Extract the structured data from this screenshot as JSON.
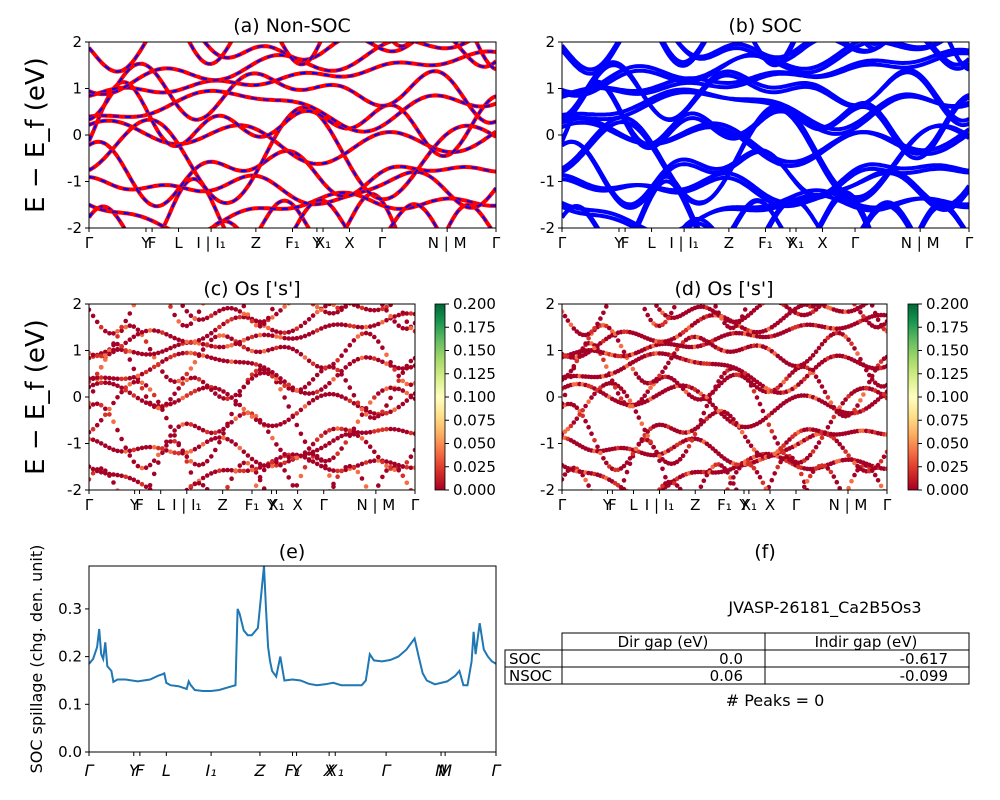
{
  "figure": {
    "ylabel_main": "E − E_f (eV)",
    "kpath_labels": [
      "Γ",
      "Y",
      "F",
      "L",
      "I | I₁",
      "Z",
      "F₁",
      "Y",
      "X₁",
      "X",
      "Γ",
      "N | M",
      "Γ"
    ]
  },
  "chart_data": [
    {
      "id": "a",
      "type": "line",
      "title": "(a) Non-SOC",
      "ylabel": "E − E_f (eV)",
      "ylim": [
        -2,
        2
      ],
      "yticks": [
        -2,
        -1,
        0,
        1,
        2
      ],
      "xticks": [
        "Γ",
        "Y",
        "F",
        "L",
        "I | I₁",
        "Z",
        "F₁",
        "Y",
        "X₁",
        "X",
        "Γ",
        "N | M",
        "Γ"
      ],
      "series": [
        {
          "color": "#ff0000"
        },
        {
          "color": "#0000ff"
        }
      ]
    },
    {
      "id": "b",
      "type": "line",
      "title": "(b) SOC",
      "ylim": [
        -2,
        2
      ],
      "yticks": [
        -2,
        -1,
        0,
        1,
        2
      ],
      "xticks": [
        "Γ",
        "Y",
        "F",
        "L",
        "I | I₁",
        "Z",
        "F₁",
        "Y",
        "X₁",
        "X",
        "Γ",
        "N | M",
        "Γ"
      ],
      "series": [
        {
          "color": "#0000ff"
        }
      ]
    },
    {
      "id": "c",
      "type": "scatter",
      "title": "(c)  Os ['s']",
      "ylabel": "E − E_f (eV)",
      "ylim": [
        -2,
        2
      ],
      "yticks": [
        -2,
        -1,
        0,
        1,
        2
      ],
      "xticks": [
        "Γ",
        "Y",
        "F",
        "L",
        "I | I₁",
        "Z",
        "F₁",
        "Y",
        "X₁",
        "X",
        "Γ",
        "N | M",
        "Γ"
      ],
      "colorbar": {
        "colormap": "RdYlGn",
        "range": [
          0.0,
          0.2
        ],
        "ticks": [
          "0.000",
          "0.025",
          "0.050",
          "0.075",
          "0.100",
          "0.125",
          "0.150",
          "0.175",
          "0.200"
        ]
      }
    },
    {
      "id": "d",
      "type": "scatter",
      "title": "(d) Os ['s']",
      "ylim": [
        -2,
        2
      ],
      "yticks": [
        -2,
        -1,
        0,
        1,
        2
      ],
      "xticks": [
        "Γ",
        "Y",
        "F",
        "L",
        "I | I₁",
        "Z",
        "F₁",
        "Y",
        "X₁",
        "X",
        "Γ",
        "N | M",
        "Γ"
      ],
      "colorbar": {
        "colormap": "RdYlGn",
        "range": [
          0.0,
          0.2
        ],
        "ticks": [
          "0.000",
          "0.025",
          "0.050",
          "0.075",
          "0.100",
          "0.125",
          "0.150",
          "0.175",
          "0.200"
        ]
      }
    },
    {
      "id": "e",
      "type": "line",
      "title": "(e)",
      "ylabel": "SOC spillage (chg. den. unit)",
      "ylim": [
        0.0,
        0.39
      ],
      "yticks": [
        "0.0",
        "0.1",
        "0.2",
        "0.3"
      ],
      "xticks": [
        "Γ",
        "Y",
        "F",
        "L",
        "I₁",
        "Z",
        "F₁",
        "Y",
        "X",
        "X₁",
        "Γ",
        "N",
        "M",
        "Γ"
      ],
      "series": [
        {
          "color": "#1f77b4",
          "x": [
            0,
            0.01,
            0.02,
            0.025,
            0.03,
            0.035,
            0.04,
            0.045,
            0.05,
            0.055,
            0.06,
            0.07,
            0.09,
            0.12,
            0.15,
            0.17,
            0.18,
            0.185,
            0.19,
            0.2,
            0.22,
            0.24,
            0.245,
            0.25,
            0.26,
            0.28,
            0.3,
            0.32,
            0.34,
            0.36,
            0.365,
            0.37,
            0.38,
            0.39,
            0.4,
            0.415,
            0.43,
            0.435,
            0.44,
            0.445,
            0.45,
            0.46,
            0.47,
            0.48,
            0.5,
            0.52,
            0.54,
            0.56,
            0.58,
            0.6,
            0.62,
            0.65,
            0.67,
            0.68,
            0.69,
            0.7,
            0.72,
            0.74,
            0.76,
            0.78,
            0.8,
            0.81,
            0.82,
            0.83,
            0.85,
            0.88,
            0.9,
            0.91,
            0.92,
            0.93,
            0.94,
            0.945,
            0.95,
            0.96,
            0.97,
            0.98,
            0.99,
            1.0
          ],
          "y": [
            0.185,
            0.195,
            0.22,
            0.258,
            0.205,
            0.195,
            0.23,
            0.18,
            0.175,
            0.17,
            0.147,
            0.152,
            0.152,
            0.148,
            0.152,
            0.16,
            0.163,
            0.165,
            0.145,
            0.14,
            0.138,
            0.132,
            0.148,
            0.14,
            0.13,
            0.128,
            0.128,
            0.13,
            0.135,
            0.14,
            0.3,
            0.29,
            0.255,
            0.245,
            0.245,
            0.26,
            0.39,
            0.3,
            0.22,
            0.19,
            0.17,
            0.158,
            0.2,
            0.15,
            0.152,
            0.15,
            0.143,
            0.14,
            0.142,
            0.145,
            0.14,
            0.14,
            0.14,
            0.15,
            0.205,
            0.192,
            0.19,
            0.193,
            0.2,
            0.215,
            0.238,
            0.2,
            0.165,
            0.15,
            0.142,
            0.148,
            0.16,
            0.17,
            0.14,
            0.14,
            0.19,
            0.252,
            0.205,
            0.27,
            0.215,
            0.2,
            0.19,
            0.185
          ]
        }
      ]
    }
  ],
  "panel_f": {
    "title": "(f)",
    "material": "JVASP-26181_Ca2B5Os3",
    "table": {
      "columns": [
        "",
        "Dir gap (eV)",
        "Indir gap (eV)"
      ],
      "rows": [
        [
          "SOC",
          "0.0",
          "-0.617"
        ],
        [
          "NSOC",
          "0.06",
          "-0.099"
        ]
      ]
    },
    "peaks": "# Peaks = 0"
  }
}
